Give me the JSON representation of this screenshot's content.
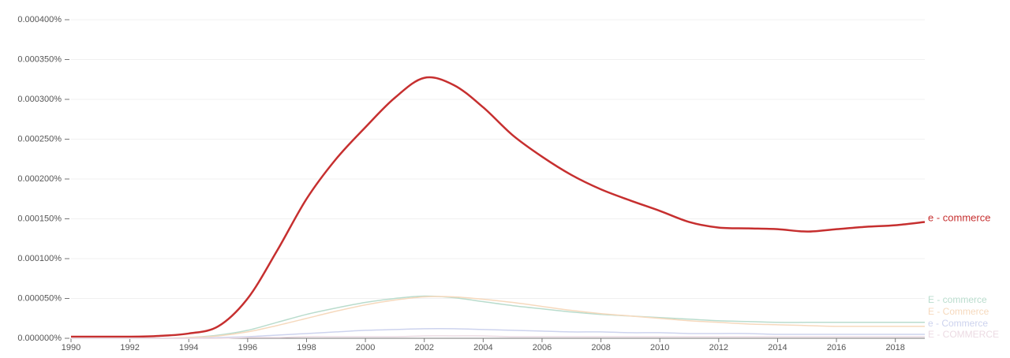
{
  "chart_data": {
    "type": "line",
    "x": [
      1990,
      1991,
      1992,
      1993,
      1994,
      1995,
      1996,
      1997,
      1998,
      1999,
      2000,
      2001,
      2002,
      2003,
      2004,
      2005,
      2006,
      2007,
      2008,
      2009,
      2010,
      2011,
      2012,
      2013,
      2014,
      2015,
      2016,
      2017,
      2018,
      2019
    ],
    "series": [
      {
        "name": "e - commerce",
        "color": "#c62f2f",
        "values": [
          2e-06,
          2e-06,
          2e-06,
          3e-06,
          6e-06,
          1.5e-05,
          5e-05,
          0.00011,
          0.000175,
          0.000225,
          0.000265,
          0.000302,
          0.000327,
          0.000318,
          0.00029,
          0.000255,
          0.000228,
          0.000205,
          0.000187,
          0.000173,
          0.00016,
          0.000146,
          0.000139,
          0.000138,
          0.000137,
          0.000134,
          0.000137,
          0.00014,
          0.000142,
          0.000146
        ]
      },
      {
        "name": "E - commerce",
        "color": "#b9dccd",
        "values": [
          0,
          0,
          0,
          0,
          1e-06,
          4e-06,
          1e-05,
          2e-05,
          3e-05,
          3.8e-05,
          4.5e-05,
          5e-05,
          5.3e-05,
          5.1e-05,
          4.6e-05,
          4.1e-05,
          3.7e-05,
          3.3e-05,
          3e-05,
          2.8e-05,
          2.6e-05,
          2.4e-05,
          2.2e-05,
          2.1e-05,
          2e-05,
          2e-05,
          2e-05,
          2e-05,
          2e-05,
          2e-05
        ]
      },
      {
        "name": "E - Commerce",
        "color": "#f6d9bd",
        "values": [
          0,
          0,
          0,
          0,
          1e-06,
          3e-06,
          8e-06,
          1.6e-05,
          2.5e-05,
          3.4e-05,
          4.2e-05,
          4.8e-05,
          5.2e-05,
          5.2e-05,
          4.9e-05,
          4.5e-05,
          4e-05,
          3.5e-05,
          3.1e-05,
          2.8e-05,
          2.5e-05,
          2.2e-05,
          2e-05,
          1.8e-05,
          1.7e-05,
          1.6e-05,
          1.5e-05,
          1.5e-05,
          1.5e-05,
          1.5e-05
        ]
      },
      {
        "name": "e - Commerce",
        "color": "#cdd3ee",
        "values": [
          0,
          0,
          0,
          0,
          0,
          1e-06,
          2e-06,
          4e-06,
          6e-06,
          8e-06,
          1e-05,
          1.1e-05,
          1.2e-05,
          1.2e-05,
          1.1e-05,
          1e-05,
          9e-06,
          8e-06,
          8e-06,
          7e-06,
          7e-06,
          6e-06,
          6e-06,
          6e-06,
          5e-06,
          5e-06,
          5e-06,
          5e-06,
          5e-06,
          5e-06
        ]
      },
      {
        "name": "E - COMMERCE",
        "color": "#ecdbe3",
        "values": [
          0,
          0,
          0,
          0,
          0,
          0,
          1e-06,
          1e-06,
          2e-06,
          2e-06,
          2e-06,
          2e-06,
          3e-06,
          3e-06,
          3e-06,
          2e-06,
          2e-06,
          2e-06,
          2e-06,
          2e-06,
          2e-06,
          2e-06,
          2e-06,
          2e-06,
          2e-06,
          2e-06,
          2e-06,
          2e-06,
          2e-06,
          2e-06
        ]
      }
    ],
    "xlim": [
      1990,
      2019
    ],
    "xticks": [
      1990,
      1992,
      1994,
      1996,
      1998,
      2000,
      2002,
      2004,
      2006,
      2008,
      2010,
      2012,
      2014,
      2016,
      2018
    ],
    "ylim": [
      0,
      0.0004
    ],
    "yticks": [
      {
        "value": 0,
        "label": "0.000000%"
      },
      {
        "value": 5e-05,
        "label": "0.000050%"
      },
      {
        "value": 0.0001,
        "label": "0.000100%"
      },
      {
        "value": 0.00015,
        "label": "0.000150%"
      },
      {
        "value": 0.0002,
        "label": "0.000200%"
      },
      {
        "value": 0.00025,
        "label": "0.000250%"
      },
      {
        "value": 0.0003,
        "label": "0.000300%"
      },
      {
        "value": 0.00035,
        "label": "0.000350%"
      },
      {
        "value": 0.0004,
        "label": "0.000400%"
      }
    ],
    "grid": true
  }
}
